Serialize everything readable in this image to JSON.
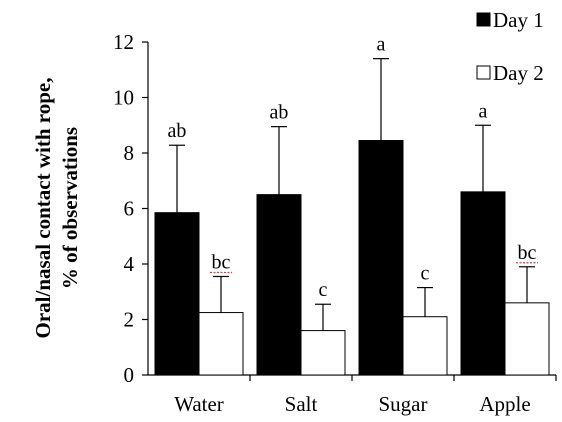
{
  "chart_data": {
    "type": "bar",
    "title": "",
    "xlabel": "",
    "ylabel_lines": [
      "Oral/nasal contact with rope,",
      "% of observations"
    ],
    "categories": [
      "Water",
      "Salt",
      "Sugar",
      "Apple"
    ],
    "ylim": [
      0,
      12
    ],
    "yticks": [
      "0",
      "2",
      "4",
      "6",
      "8",
      "10",
      "12"
    ],
    "ytick_values": [
      0,
      2,
      4,
      6,
      8,
      10,
      12
    ],
    "grid": false,
    "legend_position": "top-right",
    "series": [
      {
        "name": "Day 1",
        "color": "#000000",
        "values": [
          5.85,
          6.5,
          8.45,
          6.6
        ],
        "error": [
          2.43,
          2.45,
          2.95,
          2.4
        ],
        "significance": [
          "ab",
          "ab",
          "a",
          "a"
        ]
      },
      {
        "name": "Day 2",
        "color": "#ffffff",
        "values": [
          2.25,
          1.6,
          2.1,
          2.6
        ],
        "error": [
          1.3,
          0.95,
          1.05,
          1.3
        ],
        "significance": [
          "bc",
          "c",
          "c",
          "bc"
        ]
      }
    ]
  }
}
